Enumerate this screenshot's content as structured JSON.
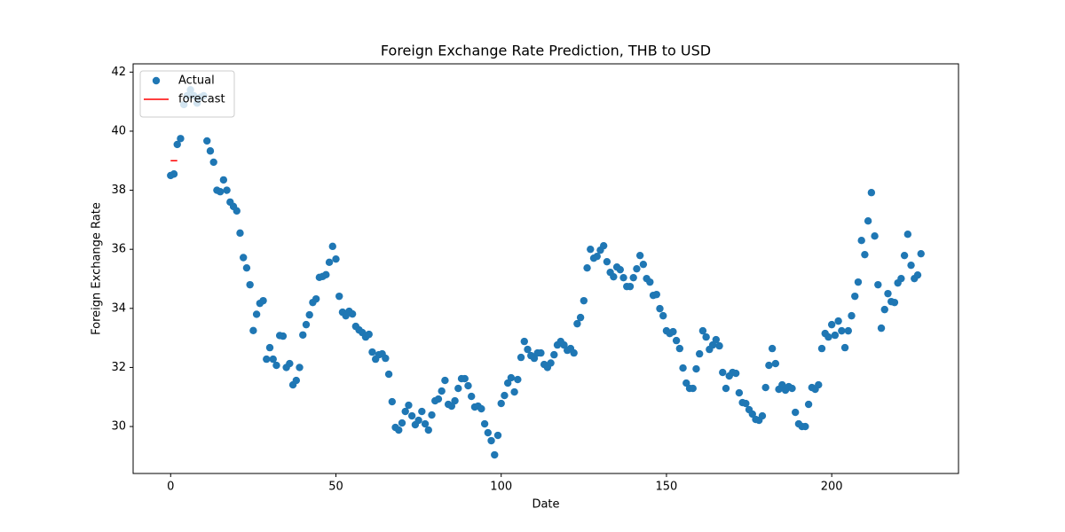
{
  "chart_data": {
    "type": "scatter",
    "title": "Foreign Exchange Rate Prediction, THB to USD",
    "x_label": "Date",
    "y_label": "Foreign Exchange Rate",
    "xlim": [
      -11.35,
      238.35
    ],
    "ylim": [
      28.41,
      42.28
    ],
    "xticks": [
      0,
      50,
      100,
      150,
      200
    ],
    "yticks": [
      30,
      32,
      34,
      36,
      38,
      40,
      42
    ],
    "legend": "upper left",
    "series": [
      {
        "name": "Actual",
        "type": "scatter",
        "color": "#1f77b4",
        "x": [
          0,
          1,
          2,
          3,
          4,
          5,
          6,
          7,
          8,
          9,
          10,
          11,
          12,
          13,
          14,
          15,
          16,
          17,
          18,
          19,
          20,
          21,
          22,
          23,
          24,
          25,
          26,
          27,
          28,
          29,
          30,
          31,
          32,
          33,
          34,
          35,
          36,
          37,
          38,
          39,
          40,
          41,
          42,
          43,
          44,
          45,
          46,
          47,
          48,
          49,
          50,
          51,
          52,
          53,
          54,
          55,
          56,
          57,
          58,
          59,
          60,
          61,
          62,
          63,
          64,
          65,
          66,
          67,
          68,
          69,
          70,
          71,
          72,
          73,
          74,
          75,
          76,
          77,
          78,
          79,
          80,
          81,
          82,
          83,
          84,
          85,
          86,
          87,
          88,
          89,
          90,
          91,
          92,
          93,
          94,
          95,
          96,
          97,
          98,
          99,
          100,
          101,
          102,
          103,
          104,
          105,
          106,
          107,
          108,
          109,
          110,
          111,
          112,
          113,
          114,
          115,
          116,
          117,
          118,
          119,
          120,
          121,
          122,
          123,
          124,
          125,
          126,
          127,
          128,
          129,
          130,
          131,
          132,
          133,
          134,
          135,
          136,
          137,
          138,
          139,
          140,
          141,
          142,
          143,
          144,
          145,
          146,
          147,
          148,
          149,
          150,
          151,
          152,
          153,
          154,
          155,
          156,
          157,
          158,
          159,
          160,
          161,
          162,
          163,
          164,
          165,
          166,
          167,
          168,
          169,
          170,
          171,
          172,
          173,
          174,
          175,
          176,
          177,
          178,
          179,
          180,
          181,
          182,
          183,
          184,
          185,
          186,
          187,
          188,
          189,
          190,
          191,
          192,
          193,
          194,
          195,
          196,
          197,
          198,
          199,
          200,
          201,
          202,
          203,
          204,
          205,
          206,
          207,
          208,
          209,
          210,
          211,
          212,
          213,
          214,
          215,
          216,
          217,
          218,
          219,
          220,
          221,
          222,
          223,
          224,
          225,
          226,
          227
        ],
        "values": [
          38.5,
          38.55,
          39.55,
          39.75,
          40.9,
          41.2,
          41.4,
          41.2,
          40.95,
          41.15,
          41.2,
          39.67,
          39.33,
          38.95,
          38.0,
          37.95,
          38.35,
          38.0,
          37.6,
          37.45,
          37.3,
          36.55,
          35.72,
          35.37,
          34.8,
          33.25,
          33.8,
          34.17,
          34.26,
          32.28,
          32.67,
          32.28,
          32.07,
          33.08,
          33.06,
          32.0,
          32.13,
          31.41,
          31.56,
          32.0,
          33.1,
          33.45,
          33.78,
          34.2,
          34.32,
          35.05,
          35.08,
          35.14,
          35.56,
          36.1,
          35.67,
          34.41,
          33.87,
          33.75,
          33.9,
          33.81,
          33.39,
          33.27,
          33.18,
          33.03,
          33.12,
          32.52,
          32.28,
          32.43,
          32.46,
          32.31,
          31.77,
          30.84,
          29.97,
          29.88,
          30.12,
          30.51,
          30.72,
          30.36,
          30.06,
          30.21,
          30.51,
          30.09,
          29.88,
          30.39,
          30.87,
          30.93,
          31.2,
          31.56,
          30.75,
          30.69,
          30.87,
          31.29,
          31.62,
          31.62,
          31.38,
          31.02,
          30.66,
          30.69,
          30.6,
          30.09,
          29.79,
          29.52,
          29.04,
          29.7,
          30.78,
          31.05,
          31.47,
          31.65,
          31.17,
          31.59,
          32.34,
          32.88,
          32.61,
          32.4,
          32.31,
          32.49,
          32.49,
          32.1,
          32.0,
          32.15,
          32.43,
          32.76,
          32.88,
          32.76,
          32.58,
          32.64,
          32.49,
          33.48,
          33.69,
          34.26,
          35.37,
          36.0,
          35.7,
          35.76,
          35.97,
          36.12,
          35.58,
          35.22,
          35.07,
          35.4,
          35.31,
          35.04,
          34.74,
          34.74,
          35.04,
          35.34,
          35.79,
          35.49,
          35.01,
          34.89,
          34.44,
          34.47,
          33.99,
          33.75,
          33.24,
          33.15,
          33.21,
          32.91,
          32.64,
          31.98,
          31.47,
          31.29,
          31.29,
          31.95,
          32.46,
          33.24,
          33.03,
          32.61,
          32.76,
          32.94,
          32.73,
          31.83,
          31.29,
          31.71,
          31.83,
          31.8,
          31.14,
          30.81,
          30.78,
          30.57,
          30.42,
          30.24,
          30.21,
          30.36,
          31.32,
          32.07,
          32.64,
          32.13,
          31.26,
          31.41,
          31.23,
          31.35,
          31.29,
          30.48,
          30.09,
          30.0,
          30.0,
          30.75,
          31.32,
          31.26,
          31.41,
          32.64,
          33.15,
          33.03,
          33.45,
          33.09,
          33.57,
          33.24,
          32.67,
          33.24,
          33.75,
          34.41,
          34.89,
          36.3,
          35.82,
          36.96,
          37.92,
          36.45,
          34.8,
          33.33,
          33.96,
          34.5,
          34.23,
          34.2,
          34.86,
          35.01,
          35.79,
          36.51,
          35.46,
          35.01,
          35.13,
          35.85
        ]
      },
      {
        "name": "forecast",
        "type": "line",
        "color": "#ff0000",
        "x": [
          0,
          2
        ],
        "values": [
          39,
          39
        ]
      }
    ]
  }
}
